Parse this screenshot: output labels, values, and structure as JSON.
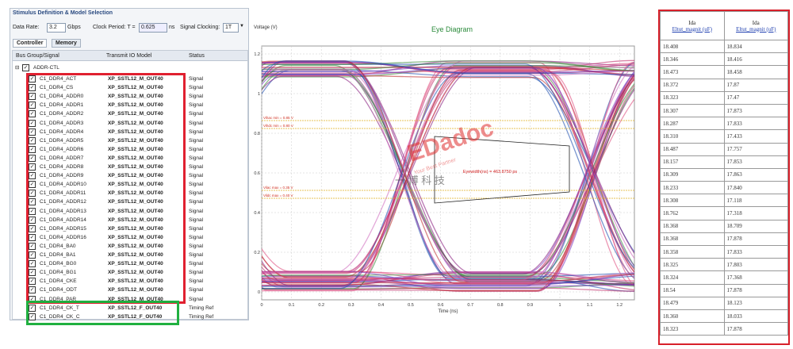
{
  "left_panel": {
    "title": "Stimulus Definition & Model Selection",
    "data_rate_label": "Data Rate:",
    "data_rate": "3.2",
    "data_rate_unit": "Gbps",
    "clock_period_label": "Clock Period: T =",
    "clock_period": "0.625",
    "clock_period_unit": "ns",
    "signal_clocking_label": "Signal Clocking:",
    "signal_clocking": "1T",
    "tabs": [
      "Controller",
      "Memory"
    ],
    "columns": [
      "Bus Group/Signal",
      "Transmit IO Model",
      "Status"
    ],
    "group": "ADDR-CTL",
    "rows": [
      [
        "C1_DDR4_ACT",
        "XP_SSTL12_M_OUT40",
        "Signal"
      ],
      [
        "C1_DDR4_CS",
        "XP_SSTL12_M_OUT40",
        "Signal"
      ],
      [
        "C1_DDR4_ADDR0",
        "XP_SSTL12_M_OUT40",
        "Signal"
      ],
      [
        "C1_DDR4_ADDR1",
        "XP_SSTL12_M_OUT40",
        "Signal"
      ],
      [
        "C1_DDR4_ADDR2",
        "XP_SSTL12_M_OUT40",
        "Signal"
      ],
      [
        "C1_DDR4_ADDR3",
        "XP_SSTL12_M_OUT40",
        "Signal"
      ],
      [
        "C1_DDR4_ADDR4",
        "XP_SSTL12_M_OUT40",
        "Signal"
      ],
      [
        "C1_DDR4_ADDR5",
        "XP_SSTL12_M_OUT40",
        "Signal"
      ],
      [
        "C1_DDR4_ADDR6",
        "XP_SSTL12_M_OUT40",
        "Signal"
      ],
      [
        "C1_DDR4_ADDR7",
        "XP_SSTL12_M_OUT40",
        "Signal"
      ],
      [
        "C1_DDR4_ADDR8",
        "XP_SSTL12_M_OUT40",
        "Signal"
      ],
      [
        "C1_DDR4_ADDR9",
        "XP_SSTL12_M_OUT40",
        "Signal"
      ],
      [
        "C1_DDR4_ADDR10",
        "XP_SSTL12_M_OUT40",
        "Signal"
      ],
      [
        "C1_DDR4_ADDR11",
        "XP_SSTL12_M_OUT40",
        "Signal"
      ],
      [
        "C1_DDR4_ADDR12",
        "XP_SSTL12_M_OUT40",
        "Signal"
      ],
      [
        "C1_DDR4_ADDR13",
        "XP_SSTL12_M_OUT40",
        "Signal"
      ],
      [
        "C1_DDR4_ADDR14",
        "XP_SSTL12_M_OUT40",
        "Signal"
      ],
      [
        "C1_DDR4_ADDR15",
        "XP_SSTL12_M_OUT40",
        "Signal"
      ],
      [
        "C1_DDR4_ADDR16",
        "XP_SSTL12_M_OUT40",
        "Signal"
      ],
      [
        "C1_DDR4_BA0",
        "XP_SSTL12_M_OUT40",
        "Signal"
      ],
      [
        "C1_DDR4_BA1",
        "XP_SSTL12_M_OUT40",
        "Signal"
      ],
      [
        "C1_DDR4_BG0",
        "XP_SSTL12_M_OUT40",
        "Signal"
      ],
      [
        "C1_DDR4_BG1",
        "XP_SSTL12_M_OUT40",
        "Signal"
      ],
      [
        "C1_DDR4_CKE",
        "XP_SSTL12_M_OUT40",
        "Signal"
      ],
      [
        "C1_DDR4_ODT",
        "XP_SSTL12_M_OUT40",
        "Signal"
      ],
      [
        "C1_DDR4_PAR",
        "XP_SSTL12_M_OUT40",
        "Signal"
      ],
      [
        "C1_DDR4_CK_T",
        "XP_SSTL12_F_OUT40",
        "Timing Ref"
      ],
      [
        "C1_DDR4_CK_C",
        "XP_SSTL12_F_OUT40",
        "Timing Ref"
      ]
    ]
  },
  "eye_diagram": {
    "title": "Eye Diagram",
    "y_axis_label": "Voltage (V)",
    "x_axis_label": "Time (ns)",
    "yticks": [
      "1.2",
      "1",
      "0.8",
      "0.6",
      "0.4",
      "0.2",
      "0"
    ],
    "xticks": [
      "0",
      "0.1",
      "0.2",
      "0.3",
      "0.4",
      "0.5",
      "0.6",
      "0.7",
      "0.8",
      "0.9",
      "1",
      "1.1",
      "1.2"
    ],
    "annotations": [
      "Vihac min = 0.85 V",
      "Vihdc min = 0.80 V",
      "Vilac max = 0.35 V",
      "Vildc max = 0.40 V"
    ],
    "eye_label": "Eyewidth(ns) = 463.8750 ps",
    "watermark": [
      "EDadoc",
      "Your Best Partner",
      "一 博 科 技"
    ]
  },
  "right_table": {
    "headers": [
      [
        "Ida",
        "Eltut_magnit (uF)"
      ],
      [
        "Ida",
        "Eltut_magnit (uF)"
      ]
    ],
    "rows": [
      [
        "18.408",
        "18.834"
      ],
      [
        "18.346",
        "18.416"
      ],
      [
        "18.473",
        "18.458"
      ],
      [
        "18.372",
        "17.87"
      ],
      [
        "18.323",
        "17.47"
      ],
      [
        "18.307",
        "17.873"
      ],
      [
        "18.287",
        "17.833"
      ],
      [
        "18.310",
        "17.433"
      ],
      [
        "18.487",
        "17.757"
      ],
      [
        "18.157",
        "17.853"
      ],
      [
        "18.309",
        "17.863"
      ],
      [
        "18.233",
        "17.840"
      ],
      [
        "18.308",
        "17.118"
      ],
      [
        "18.762",
        "17.318"
      ],
      [
        "18.368",
        "18.709"
      ],
      [
        "18.368",
        "17.878"
      ],
      [
        "18.358",
        "17.833"
      ],
      [
        "18.325",
        "17.803"
      ],
      [
        "18.324",
        "17.368"
      ],
      [
        "18.54",
        "17.878"
      ],
      [
        "18.479",
        "18.123"
      ],
      [
        "18.360",
        "18.033"
      ],
      [
        "18.323",
        "17.878"
      ]
    ]
  }
}
